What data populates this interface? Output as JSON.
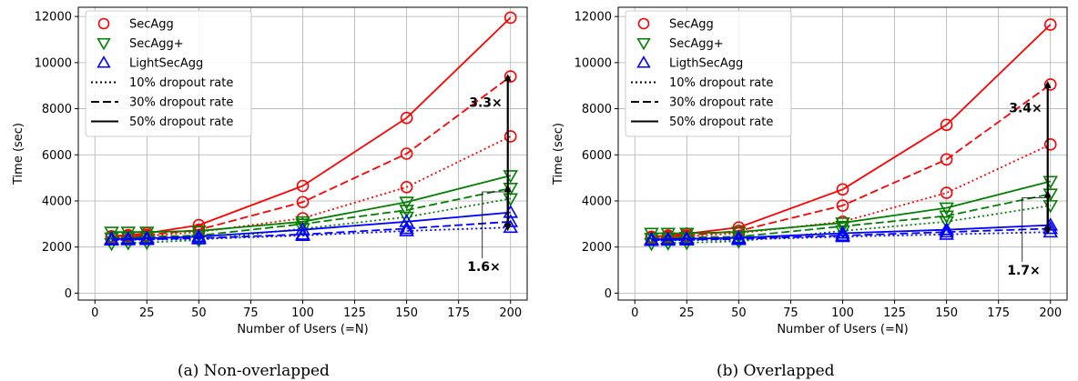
{
  "chart_data": [
    {
      "type": "line",
      "caption": "(a) Non-overlapped",
      "xlabel": "Number of Users (=N)",
      "ylabel": "Time (sec)",
      "xlim": [
        -8,
        208
      ],
      "ylim": [
        -300,
        12400
      ],
      "xticks": [
        0,
        25,
        50,
        75,
        100,
        125,
        150,
        175,
        200
      ],
      "yticks": [
        0,
        2000,
        4000,
        6000,
        8000,
        10000,
        12000
      ],
      "grid": true,
      "legend_position": "upper-left",
      "legend": [
        {
          "label": "SecAgg",
          "kind": "marker",
          "marker": "circle",
          "color": "#ff0000"
        },
        {
          "label": "SecAgg+",
          "kind": "marker",
          "marker": "triangle-down",
          "color": "#008000"
        },
        {
          "label": "LightSecAgg",
          "kind": "marker",
          "marker": "triangle-up",
          "color": "#0000ff"
        },
        {
          "label": "10% dropout rate",
          "kind": "line",
          "dash": "dotted",
          "color": "#000000"
        },
        {
          "label": "30% dropout rate",
          "kind": "line",
          "dash": "dashed",
          "color": "#000000"
        },
        {
          "label": "50% dropout rate",
          "kind": "line",
          "dash": "solid",
          "color": "#000000"
        }
      ],
      "x": [
        8,
        16,
        25,
        50,
        100,
        150,
        200
      ],
      "series": [
        {
          "protocol": "SecAgg",
          "dropout": "10%",
          "color": "#ff0000",
          "dash": "dotted",
          "marker": "circle",
          "values": [
            2420,
            2450,
            2480,
            2650,
            3250,
            4600,
            6800
          ]
        },
        {
          "protocol": "SecAgg",
          "dropout": "30%",
          "color": "#ff0000",
          "dash": "dashed",
          "marker": "circle",
          "values": [
            2440,
            2480,
            2520,
            2750,
            3950,
            6050,
            9400
          ]
        },
        {
          "protocol": "SecAgg",
          "dropout": "50%",
          "color": "#ff0000",
          "dash": "solid",
          "marker": "circle",
          "values": [
            2470,
            2520,
            2600,
            2950,
            4650,
            7600,
            11950
          ]
        },
        {
          "protocol": "SecAgg+",
          "dropout": "10%",
          "color": "#008000",
          "dash": "dotted",
          "marker": "triangle-down",
          "values": [
            2150,
            2180,
            2200,
            2300,
            2800,
            3300,
            4100
          ]
        },
        {
          "protocol": "SecAgg+",
          "dropout": "30%",
          "color": "#008000",
          "dash": "dashed",
          "marker": "triangle-down",
          "values": [
            2400,
            2420,
            2450,
            2500,
            3000,
            3600,
            4550
          ]
        },
        {
          "protocol": "SecAgg+",
          "dropout": "50%",
          "color": "#008000",
          "dash": "solid",
          "marker": "triangle-down",
          "values": [
            2650,
            2650,
            2650,
            2700,
            3100,
            3950,
            5100
          ]
        },
        {
          "protocol": "LightSecAgg",
          "dropout": "10%",
          "color": "#0000ff",
          "dash": "dotted",
          "marker": "triangle-up",
          "values": [
            2300,
            2310,
            2320,
            2350,
            2500,
            2700,
            2850
          ]
        },
        {
          "protocol": "LightSecAgg",
          "dropout": "30%",
          "color": "#0000ff",
          "dash": "dashed",
          "marker": "triangle-up",
          "values": [
            2320,
            2330,
            2340,
            2380,
            2550,
            2800,
            3100
          ]
        },
        {
          "protocol": "LightSecAgg",
          "dropout": "50%",
          "color": "#0000ff",
          "dash": "solid",
          "marker": "triangle-up",
          "values": [
            2350,
            2360,
            2380,
            2450,
            2750,
            3100,
            3500
          ]
        }
      ],
      "annotations": [
        {
          "text": "3.3×",
          "x1": 200,
          "y1": 2850,
          "y2": 9350
        },
        {
          "text": "1.6×",
          "x1": 200,
          "y1": 2850,
          "y2": 4550
        }
      ]
    },
    {
      "type": "line",
      "caption": "(b) Overlapped",
      "xlabel": "Number of Users (=N)",
      "ylabel": "Time (sec)",
      "xlim": [
        -8,
        208
      ],
      "ylim": [
        -300,
        12400
      ],
      "xticks": [
        0,
        25,
        50,
        75,
        100,
        125,
        150,
        175,
        200
      ],
      "yticks": [
        0,
        2000,
        4000,
        6000,
        8000,
        10000,
        12000
      ],
      "grid": true,
      "legend_position": "upper-left",
      "legend": [
        {
          "label": "SecAgg",
          "kind": "marker",
          "marker": "circle",
          "color": "#ff0000"
        },
        {
          "label": "SecAgg+",
          "kind": "marker",
          "marker": "triangle-down",
          "color": "#008000"
        },
        {
          "label": "LigthSecAgg",
          "kind": "marker",
          "marker": "triangle-up",
          "color": "#0000ff"
        },
        {
          "label": "10% dropout rate",
          "kind": "line",
          "dash": "dotted",
          "color": "#000000"
        },
        {
          "label": "30% dropout rate",
          "kind": "line",
          "dash": "dashed",
          "color": "#000000"
        },
        {
          "label": "50% dropout rate",
          "kind": "line",
          "dash": "solid",
          "color": "#000000"
        }
      ],
      "x": [
        8,
        16,
        25,
        50,
        100,
        150,
        200
      ],
      "series": [
        {
          "protocol": "SecAgg",
          "dropout": "10%",
          "color": "#ff0000",
          "dash": "dotted",
          "marker": "circle",
          "values": [
            2400,
            2430,
            2460,
            2600,
            3100,
            4350,
            6450
          ]
        },
        {
          "protocol": "SecAgg",
          "dropout": "30%",
          "color": "#ff0000",
          "dash": "dashed",
          "marker": "circle",
          "values": [
            2420,
            2460,
            2500,
            2700,
            3800,
            5800,
            9050
          ]
        },
        {
          "protocol": "SecAgg",
          "dropout": "50%",
          "color": "#ff0000",
          "dash": "solid",
          "marker": "circle",
          "values": [
            2450,
            2500,
            2580,
            2850,
            4500,
            7300,
            11650
          ]
        },
        {
          "protocol": "SecAgg+",
          "dropout": "10%",
          "color": "#008000",
          "dash": "dotted",
          "marker": "triangle-down",
          "values": [
            2150,
            2170,
            2190,
            2250,
            2700,
            3100,
            3800
          ]
        },
        {
          "protocol": "SecAgg+",
          "dropout": "30%",
          "color": "#008000",
          "dash": "dashed",
          "marker": "triangle-down",
          "values": [
            2380,
            2400,
            2420,
            2450,
            2900,
            3350,
            4300
          ]
        },
        {
          "protocol": "SecAgg+",
          "dropout": "50%",
          "color": "#008000",
          "dash": "solid",
          "marker": "triangle-down",
          "values": [
            2600,
            2600,
            2600,
            2650,
            3050,
            3700,
            4850
          ]
        },
        {
          "protocol": "LightSecAgg",
          "dropout": "10%",
          "color": "#0000ff",
          "dash": "dotted",
          "marker": "triangle-up",
          "values": [
            2280,
            2290,
            2300,
            2320,
            2450,
            2550,
            2650
          ]
        },
        {
          "protocol": "LightSecAgg",
          "dropout": "30%",
          "color": "#0000ff",
          "dash": "dashed",
          "marker": "triangle-up",
          "values": [
            2300,
            2310,
            2320,
            2350,
            2500,
            2650,
            2800
          ]
        },
        {
          "protocol": "LightSecAgg",
          "dropout": "50%",
          "color": "#0000ff",
          "dash": "solid",
          "marker": "triangle-up",
          "values": [
            2330,
            2340,
            2360,
            2400,
            2600,
            2750,
            2950
          ]
        }
      ],
      "annotations": [
        {
          "text": "3.4×",
          "x1": 200,
          "y1": 2700,
          "y2": 9050
        },
        {
          "text": "1.7×",
          "x1": 200,
          "y1": 2700,
          "y2": 4300
        }
      ]
    }
  ]
}
